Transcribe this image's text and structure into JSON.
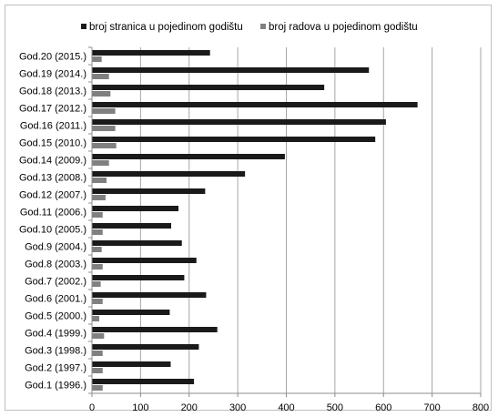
{
  "chart_data": {
    "type": "bar",
    "orientation": "horizontal",
    "categories": [
      "God.1 (1996.)",
      "God.2 (1997.)",
      "God.3 (1998.)",
      "God.4 (1999.)",
      "God.5 (2000.)",
      "God.6 (2001.)",
      "God.7 (2002.)",
      "God.8 (2003.)",
      "God.9 (2004.)",
      "God.10 (2005.)",
      "God.11 (2006.)",
      "God.12 (2007.)",
      "God.13 (2008.)",
      "God.14 (2009.)",
      "God.15 (2010.)",
      "God.16 (2011.)",
      "God.17 (2012.)",
      "God.18 (2013.)",
      "God.19 (2014.)",
      "God.20 (2015.)"
    ],
    "series": [
      {
        "name": "broj stranica u pojedinom godištu",
        "color": "#1a1a1a",
        "values": [
          210,
          162,
          220,
          258,
          160,
          235,
          190,
          215,
          185,
          163,
          178,
          233,
          315,
          397,
          583,
          605,
          670,
          478,
          570,
          243
        ]
      },
      {
        "name": "broj radova u pojedinom godištu",
        "color": "#808080",
        "values": [
          22,
          22,
          22,
          25,
          15,
          22,
          18,
          22,
          20,
          22,
          22,
          28,
          30,
          35,
          50,
          48,
          48,
          38,
          35,
          20
        ]
      }
    ],
    "xlim": [
      0,
      800
    ],
    "xticks": [
      "0",
      "100",
      "200",
      "300",
      "400",
      "500",
      "600",
      "700",
      "800"
    ],
    "grid": true,
    "legend_position": "top",
    "title": "",
    "xlabel": "",
    "ylabel": ""
  }
}
